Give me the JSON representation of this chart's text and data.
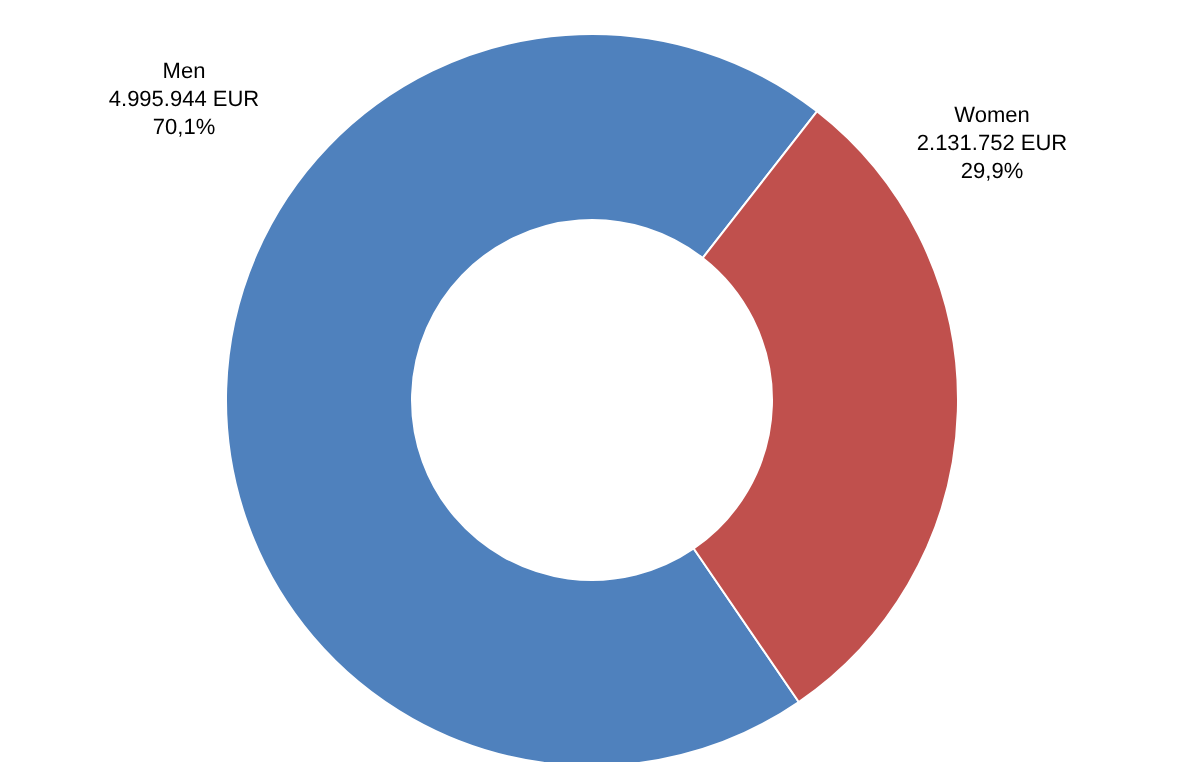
{
  "chart_data": {
    "type": "donut",
    "categories": [
      "Men",
      "Women"
    ],
    "values": [
      4995944,
      2131752
    ],
    "colors": [
      "#4f81bd",
      "#c0504d"
    ],
    "value_labels": [
      "4.995.944 EUR\n70,1%",
      "2.131.752 EUR\n29,9%"
    ]
  }
}
